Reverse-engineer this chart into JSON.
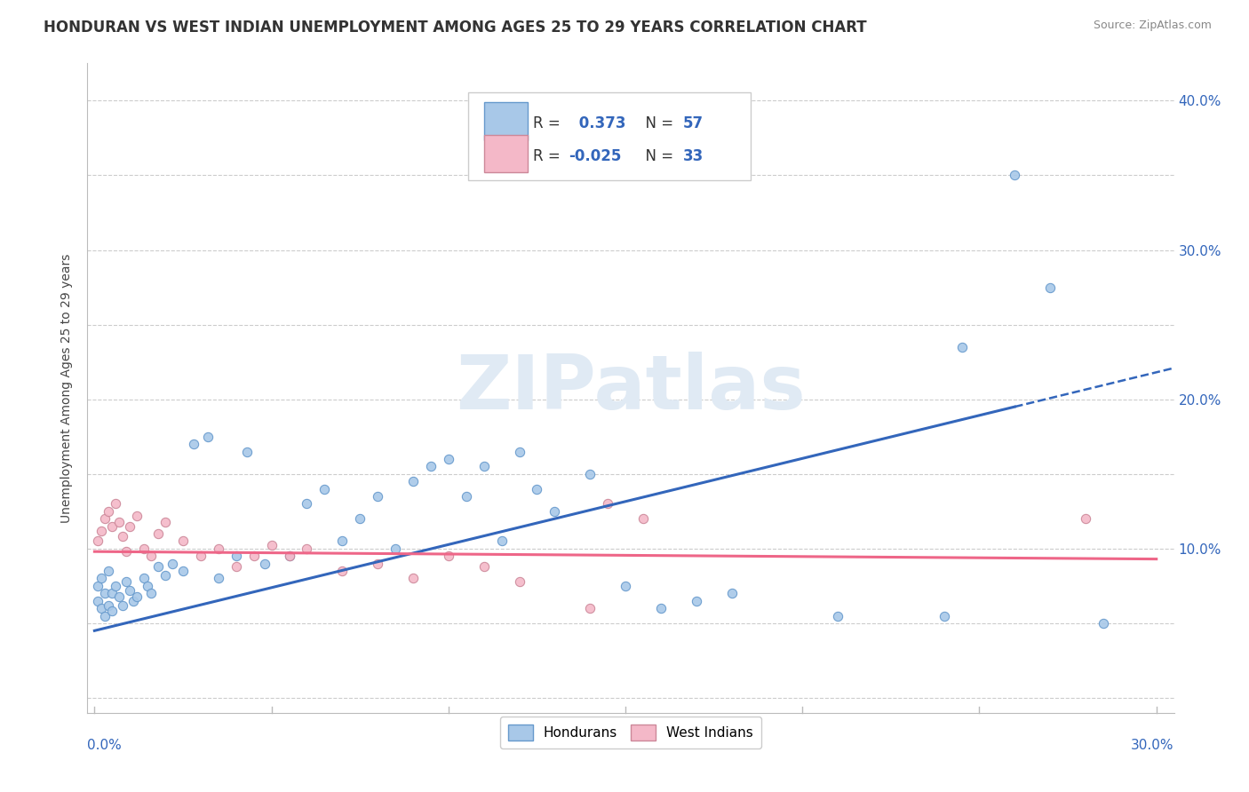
{
  "title": "HONDURAN VS WEST INDIAN UNEMPLOYMENT AMONG AGES 25 TO 29 YEARS CORRELATION CHART",
  "source": "Source: ZipAtlas.com",
  "ylabel": "Unemployment Among Ages 25 to 29 years",
  "legend_honduran": {
    "label": "Hondurans",
    "R": "0.373",
    "N": "57"
  },
  "legend_westindian": {
    "label": "West Indians",
    "R": "-0.025",
    "N": "33"
  },
  "honduran_dot_color": "#a8c8e8",
  "honduran_dot_edge": "#6699cc",
  "westindian_dot_color": "#f4b8c8",
  "westindian_dot_edge": "#cc8899",
  "blue_line_color": "#3366bb",
  "pink_line_color": "#ee6688",
  "blue_line_x": [
    0.0,
    0.26
  ],
  "blue_line_y": [
    0.045,
    0.195
  ],
  "pink_line_x": [
    0.0,
    0.3
  ],
  "pink_line_y": [
    0.098,
    0.093
  ],
  "xlim": [
    -0.002,
    0.305
  ],
  "ylim": [
    -0.01,
    0.425
  ],
  "yticks": [
    0.0,
    0.05,
    0.1,
    0.15,
    0.2,
    0.25,
    0.3,
    0.35,
    0.4
  ],
  "ytick_labels": [
    "",
    "",
    "10.0%",
    "",
    "20.0%",
    "",
    "30.0%",
    "",
    "40.0%"
  ],
  "xtick_left_label": "0.0%",
  "xtick_right_label": "30.0%",
  "grid_color": "#cccccc",
  "background_color": "#ffffff",
  "watermark_text": "ZIPatlas",
  "watermark_color": "#e0eaf4",
  "title_fontsize": 12,
  "axis_label_fontsize": 10,
  "tick_fontsize": 11,
  "source_fontsize": 9,
  "honduran_x": [
    0.001,
    0.001,
    0.002,
    0.002,
    0.003,
    0.003,
    0.004,
    0.004,
    0.005,
    0.005,
    0.006,
    0.007,
    0.008,
    0.009,
    0.01,
    0.011,
    0.012,
    0.014,
    0.015,
    0.016,
    0.018,
    0.02,
    0.022,
    0.025,
    0.028,
    0.032,
    0.035,
    0.04,
    0.043,
    0.048,
    0.055,
    0.06,
    0.065,
    0.07,
    0.075,
    0.08,
    0.085,
    0.09,
    0.095,
    0.1,
    0.105,
    0.11,
    0.115,
    0.12,
    0.125,
    0.13,
    0.14,
    0.15,
    0.16,
    0.17,
    0.18,
    0.21,
    0.24,
    0.245,
    0.26,
    0.27,
    0.285
  ],
  "honduran_y": [
    0.075,
    0.065,
    0.08,
    0.06,
    0.07,
    0.055,
    0.085,
    0.062,
    0.07,
    0.058,
    0.075,
    0.068,
    0.062,
    0.078,
    0.072,
    0.065,
    0.068,
    0.08,
    0.075,
    0.07,
    0.088,
    0.082,
    0.09,
    0.085,
    0.17,
    0.175,
    0.08,
    0.095,
    0.165,
    0.09,
    0.095,
    0.13,
    0.14,
    0.105,
    0.12,
    0.135,
    0.1,
    0.145,
    0.155,
    0.16,
    0.135,
    0.155,
    0.105,
    0.165,
    0.14,
    0.125,
    0.15,
    0.075,
    0.06,
    0.065,
    0.07,
    0.055,
    0.055,
    0.235,
    0.35,
    0.275,
    0.05
  ],
  "westindian_x": [
    0.001,
    0.002,
    0.003,
    0.004,
    0.005,
    0.006,
    0.007,
    0.008,
    0.009,
    0.01,
    0.012,
    0.014,
    0.016,
    0.018,
    0.02,
    0.025,
    0.03,
    0.035,
    0.04,
    0.045,
    0.05,
    0.055,
    0.06,
    0.07,
    0.08,
    0.09,
    0.1,
    0.11,
    0.12,
    0.14,
    0.145,
    0.155,
    0.28
  ],
  "westindian_y": [
    0.105,
    0.112,
    0.12,
    0.125,
    0.115,
    0.13,
    0.118,
    0.108,
    0.098,
    0.115,
    0.122,
    0.1,
    0.095,
    0.11,
    0.118,
    0.105,
    0.095,
    0.1,
    0.088,
    0.095,
    0.102,
    0.095,
    0.1,
    0.085,
    0.09,
    0.08,
    0.095,
    0.088,
    0.078,
    0.06,
    0.13,
    0.12,
    0.12
  ]
}
